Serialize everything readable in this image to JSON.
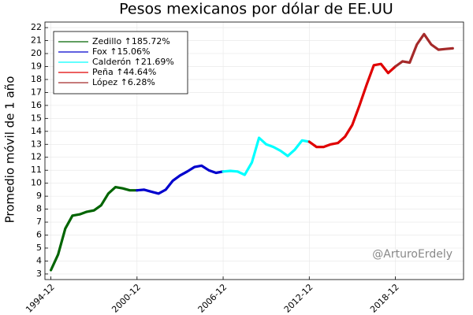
{
  "chart_data": {
    "type": "line",
    "title": "Pesos mexicanos por dólar de EE.UU",
    "y_label": "Promedio móvil de 1 año",
    "annotation": "@ArturoErdely",
    "xlim": [
      "1994-07",
      "2023-09"
    ],
    "xticks": [
      "1994-12",
      "2000-12",
      "2006-12",
      "2012-12",
      "2018-12"
    ],
    "ylim": [
      2.57,
      22.43
    ],
    "yticks": [
      3,
      4,
      5,
      6,
      7,
      8,
      9,
      10,
      11,
      12,
      13,
      14,
      15,
      16,
      17,
      18,
      19,
      20,
      21,
      22
    ],
    "grid": true,
    "legend": "top-left",
    "series": [
      {
        "name": "Zedillo ↑185.72%",
        "color": "#006400",
        "x": [
          "1994-12",
          "1995-06",
          "1995-12",
          "1996-06",
          "1996-12",
          "1997-06",
          "1997-12",
          "1998-06",
          "1998-12",
          "1999-06",
          "1999-12",
          "2000-06",
          "2000-12"
        ],
        "values": [
          3.3,
          4.5,
          6.5,
          7.5,
          7.6,
          7.8,
          7.9,
          8.3,
          9.2,
          9.7,
          9.6,
          9.45,
          9.45
        ]
      },
      {
        "name": "Fox ↑15.06%",
        "color": "#0000cd",
        "x": [
          "2000-12",
          "2001-06",
          "2001-12",
          "2002-06",
          "2002-12",
          "2003-06",
          "2003-12",
          "2004-06",
          "2004-12",
          "2005-06",
          "2005-12",
          "2006-06",
          "2006-12"
        ],
        "values": [
          9.45,
          9.5,
          9.35,
          9.2,
          9.5,
          10.2,
          10.6,
          10.9,
          11.25,
          11.35,
          11.0,
          10.8,
          10.9
        ]
      },
      {
        "name": "Calderón ↑21.69%",
        "color": "#00ffff",
        "x": [
          "2006-12",
          "2007-06",
          "2007-12",
          "2008-06",
          "2008-12",
          "2009-06",
          "2009-12",
          "2010-06",
          "2010-12",
          "2011-06",
          "2011-12",
          "2012-06",
          "2012-12"
        ],
        "values": [
          10.9,
          10.95,
          10.9,
          10.65,
          11.6,
          13.5,
          13.0,
          12.8,
          12.5,
          12.1,
          12.6,
          13.3,
          13.2
        ]
      },
      {
        "name": "Peña ↑44.64%",
        "color": "#e00000",
        "x": [
          "2012-12",
          "2013-06",
          "2013-12",
          "2014-06",
          "2014-12",
          "2015-06",
          "2015-12",
          "2016-06",
          "2016-12",
          "2017-06",
          "2017-12",
          "2018-06",
          "2018-12"
        ],
        "values": [
          13.2,
          12.8,
          12.8,
          13.0,
          13.1,
          13.6,
          14.5,
          16.0,
          17.6,
          19.1,
          19.2,
          18.5,
          19.0
        ]
      },
      {
        "name": "López ↑6.28%",
        "color": "#a52a2a",
        "x": [
          "2018-12",
          "2019-06",
          "2019-12",
          "2020-06",
          "2020-12",
          "2021-06",
          "2021-12",
          "2022-06",
          "2022-12"
        ],
        "values": [
          19.0,
          19.4,
          19.3,
          20.7,
          21.5,
          20.7,
          20.3,
          20.35,
          20.4
        ]
      }
    ]
  }
}
